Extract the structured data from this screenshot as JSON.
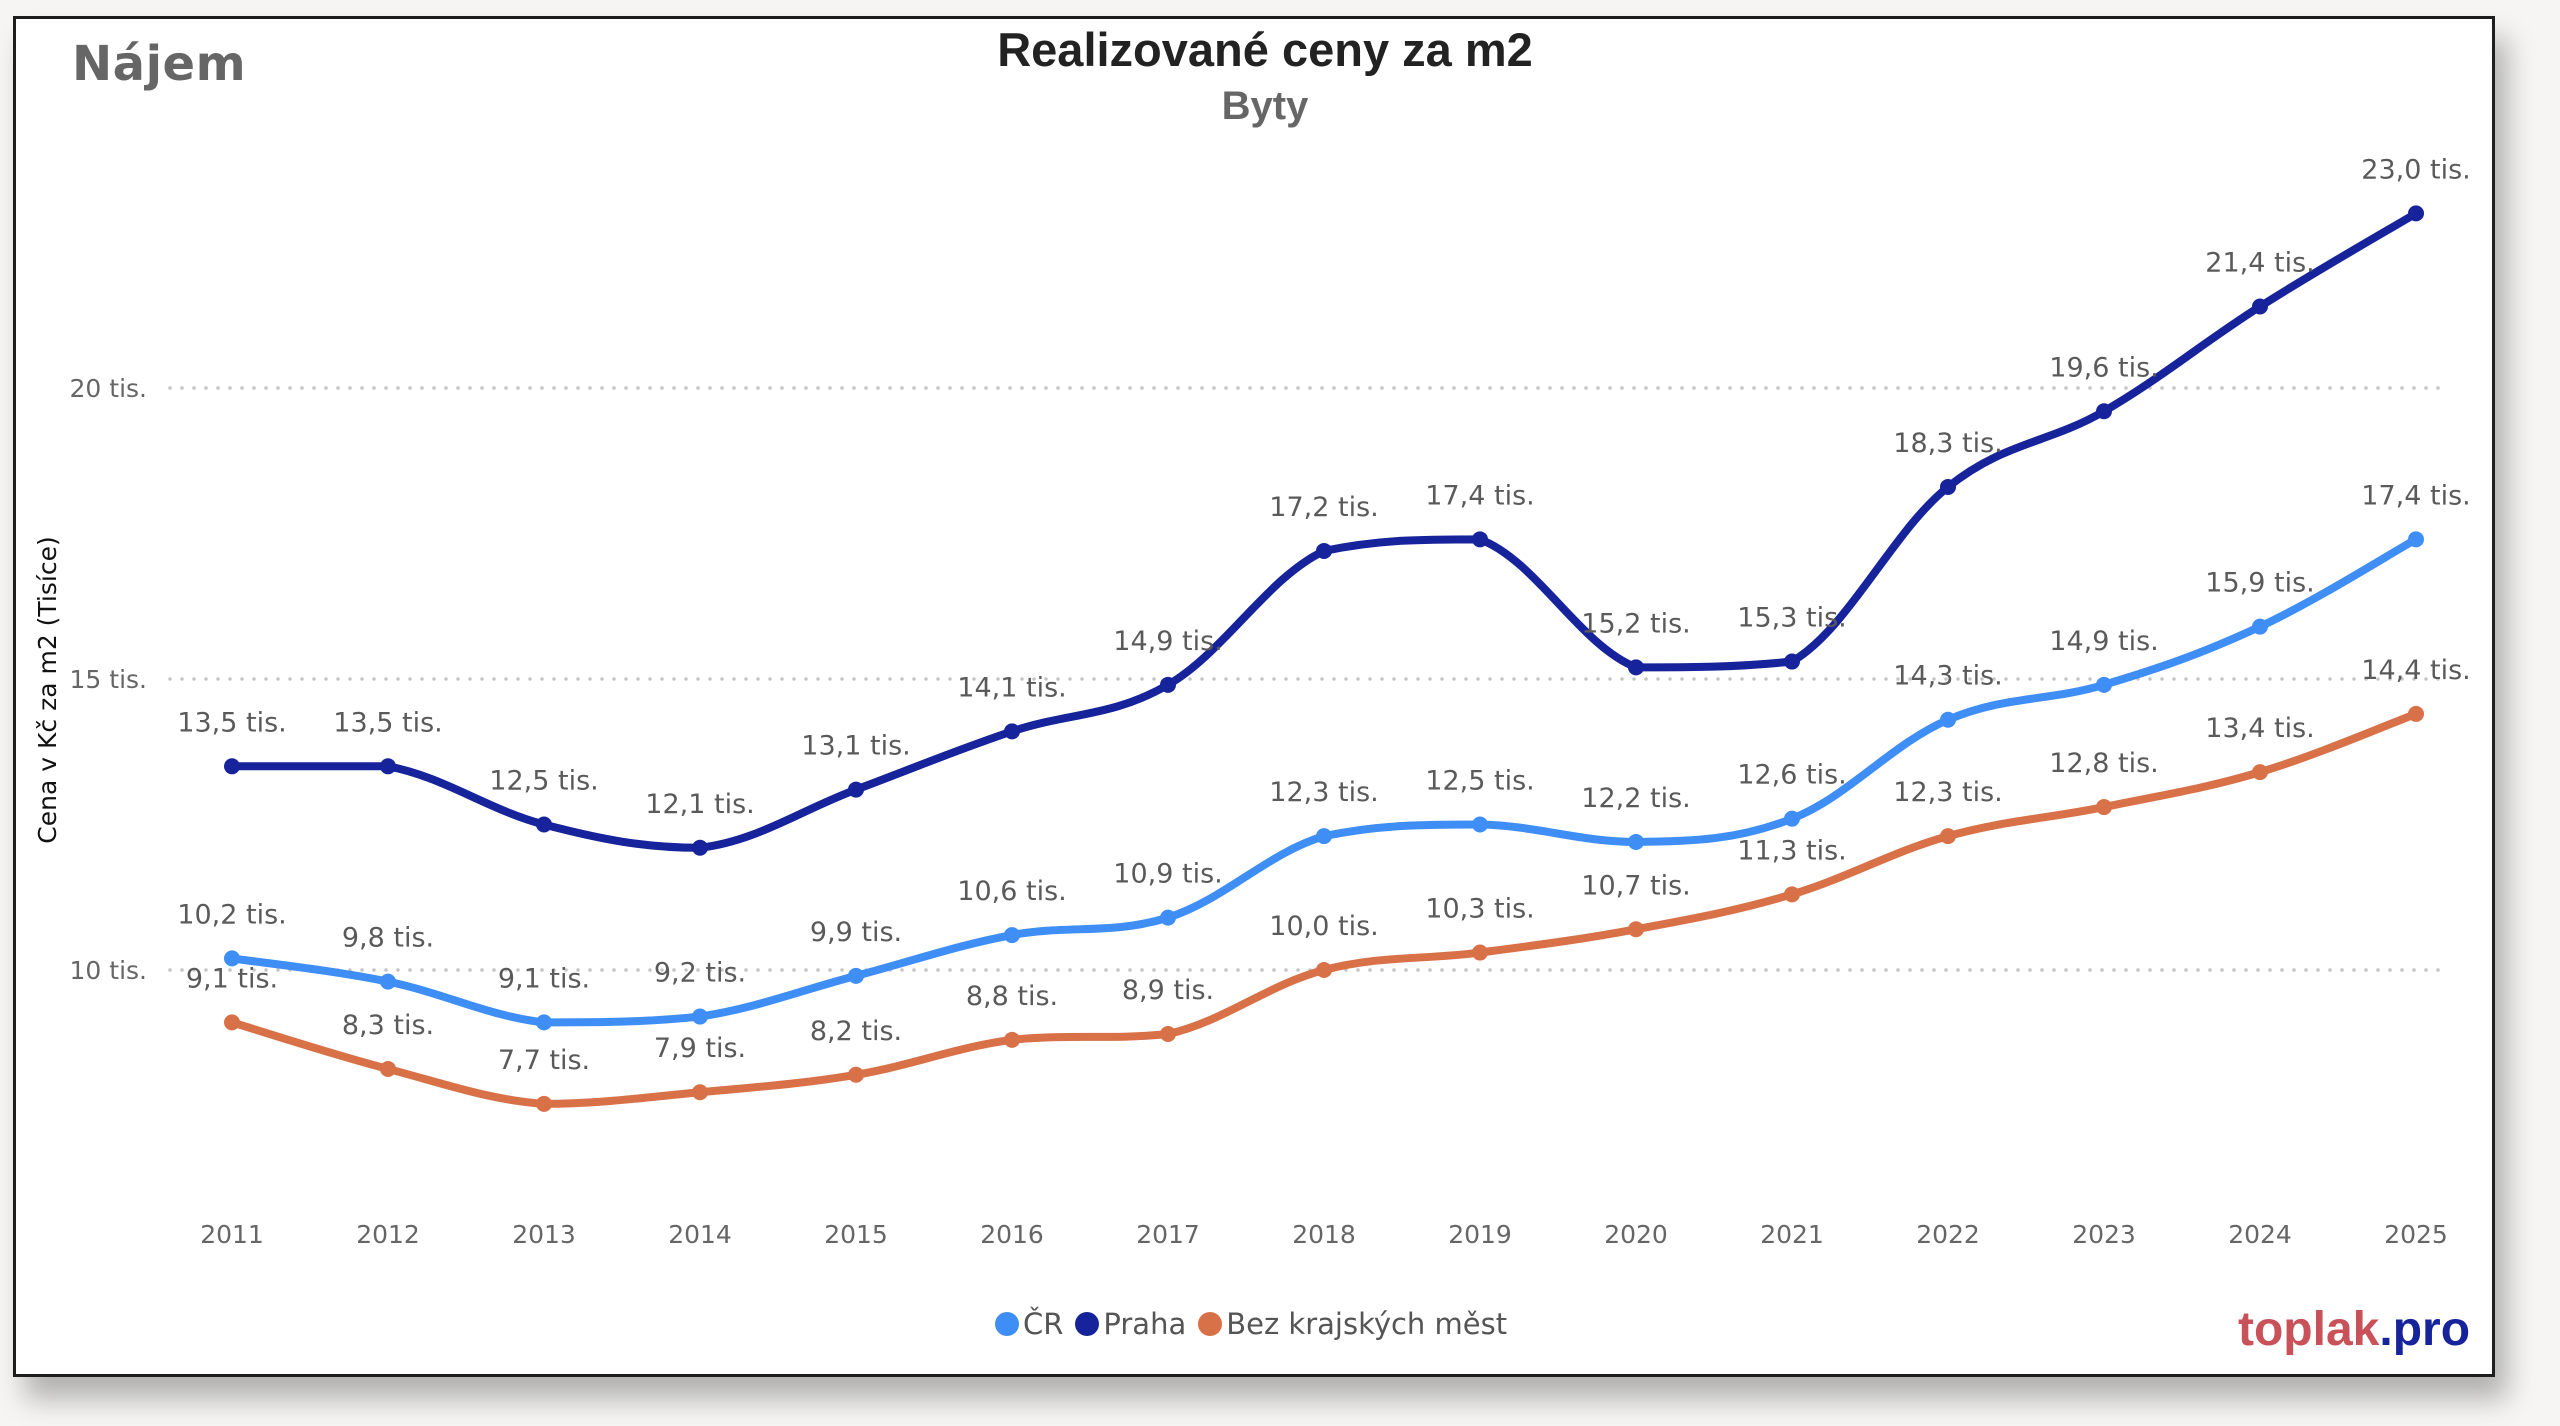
{
  "header": {
    "corner_title": "Nájem",
    "title": "Realizované ceny za m2",
    "subtitle": "Byty"
  },
  "logo": {
    "part1": "toplak",
    "part2": ".pro",
    "color1": "#c9525a",
    "color2": "#16239b"
  },
  "chart_data": {
    "type": "line",
    "title": "Realizované ceny za m2",
    "subtitle": "Byty",
    "xlabel": "",
    "ylabel": "Cena v Kč za m2 (Tisíce)",
    "ylim": [
      6,
      23.5
    ],
    "grid": true,
    "legend_position": "bottom",
    "y_ticks": [
      {
        "value": 10,
        "label": "10 tis."
      },
      {
        "value": 15,
        "label": "15 tis."
      },
      {
        "value": 20,
        "label": "20 tis."
      }
    ],
    "categories": [
      "2011",
      "2012",
      "2013",
      "2014",
      "2015",
      "2016",
      "2017",
      "2018",
      "2019",
      "2020",
      "2021",
      "2022",
      "2023",
      "2024",
      "2025"
    ],
    "series": [
      {
        "name": "ČR",
        "color": "#3f8ef6",
        "values": [
          10.2,
          9.8,
          9.1,
          9.2,
          9.9,
          10.6,
          10.9,
          12.3,
          12.5,
          12.2,
          12.6,
          14.3,
          14.9,
          15.9,
          17.4
        ],
        "labels": [
          "10,2 tis.",
          "9,8 tis.",
          "9,1 tis.",
          "9,2 tis.",
          "9,9 tis.",
          "10,6 tis.",
          "10,9 tis.",
          "12,3 tis.",
          "12,5 tis.",
          "12,2 tis.",
          "12,6 tis.",
          "14,3 tis.",
          "14,9 tis.",
          "15,9 tis.",
          "17,4 tis."
        ]
      },
      {
        "name": "Praha",
        "color": "#16239b",
        "values": [
          13.5,
          13.5,
          12.5,
          12.1,
          13.1,
          14.1,
          14.9,
          17.2,
          17.4,
          15.2,
          15.3,
          18.3,
          19.6,
          21.4,
          23.0
        ],
        "labels": [
          "13,5 tis.",
          "13,5 tis.",
          "12,5 tis.",
          "12,1 tis.",
          "13,1 tis.",
          "14,1 tis.",
          "14,9 tis.",
          "17,2 tis.",
          "17,4 tis.",
          "15,2 tis.",
          "15,3 tis.",
          "18,3 tis.",
          "19,6 tis.",
          "21,4 tis.",
          "23,0 tis."
        ]
      },
      {
        "name": "Bez krajských měst",
        "color": "#d97148",
        "values": [
          9.1,
          8.3,
          7.7,
          7.9,
          8.2,
          8.8,
          8.9,
          10.0,
          10.3,
          10.7,
          11.3,
          12.3,
          12.8,
          13.4,
          14.4
        ],
        "labels": [
          "9,1 tis.",
          "8,3 tis.",
          "7,7 tis.",
          "7,9 tis.",
          "8,2 tis.",
          "8,8 tis.",
          "8,9 tis.",
          "10,0 tis.",
          "10,3 tis.",
          "10,7 tis.",
          "11,3 tis.",
          "12,3 tis.",
          "12,8 tis.",
          "13,4 tis.",
          "14,4 tis."
        ]
      }
    ]
  }
}
